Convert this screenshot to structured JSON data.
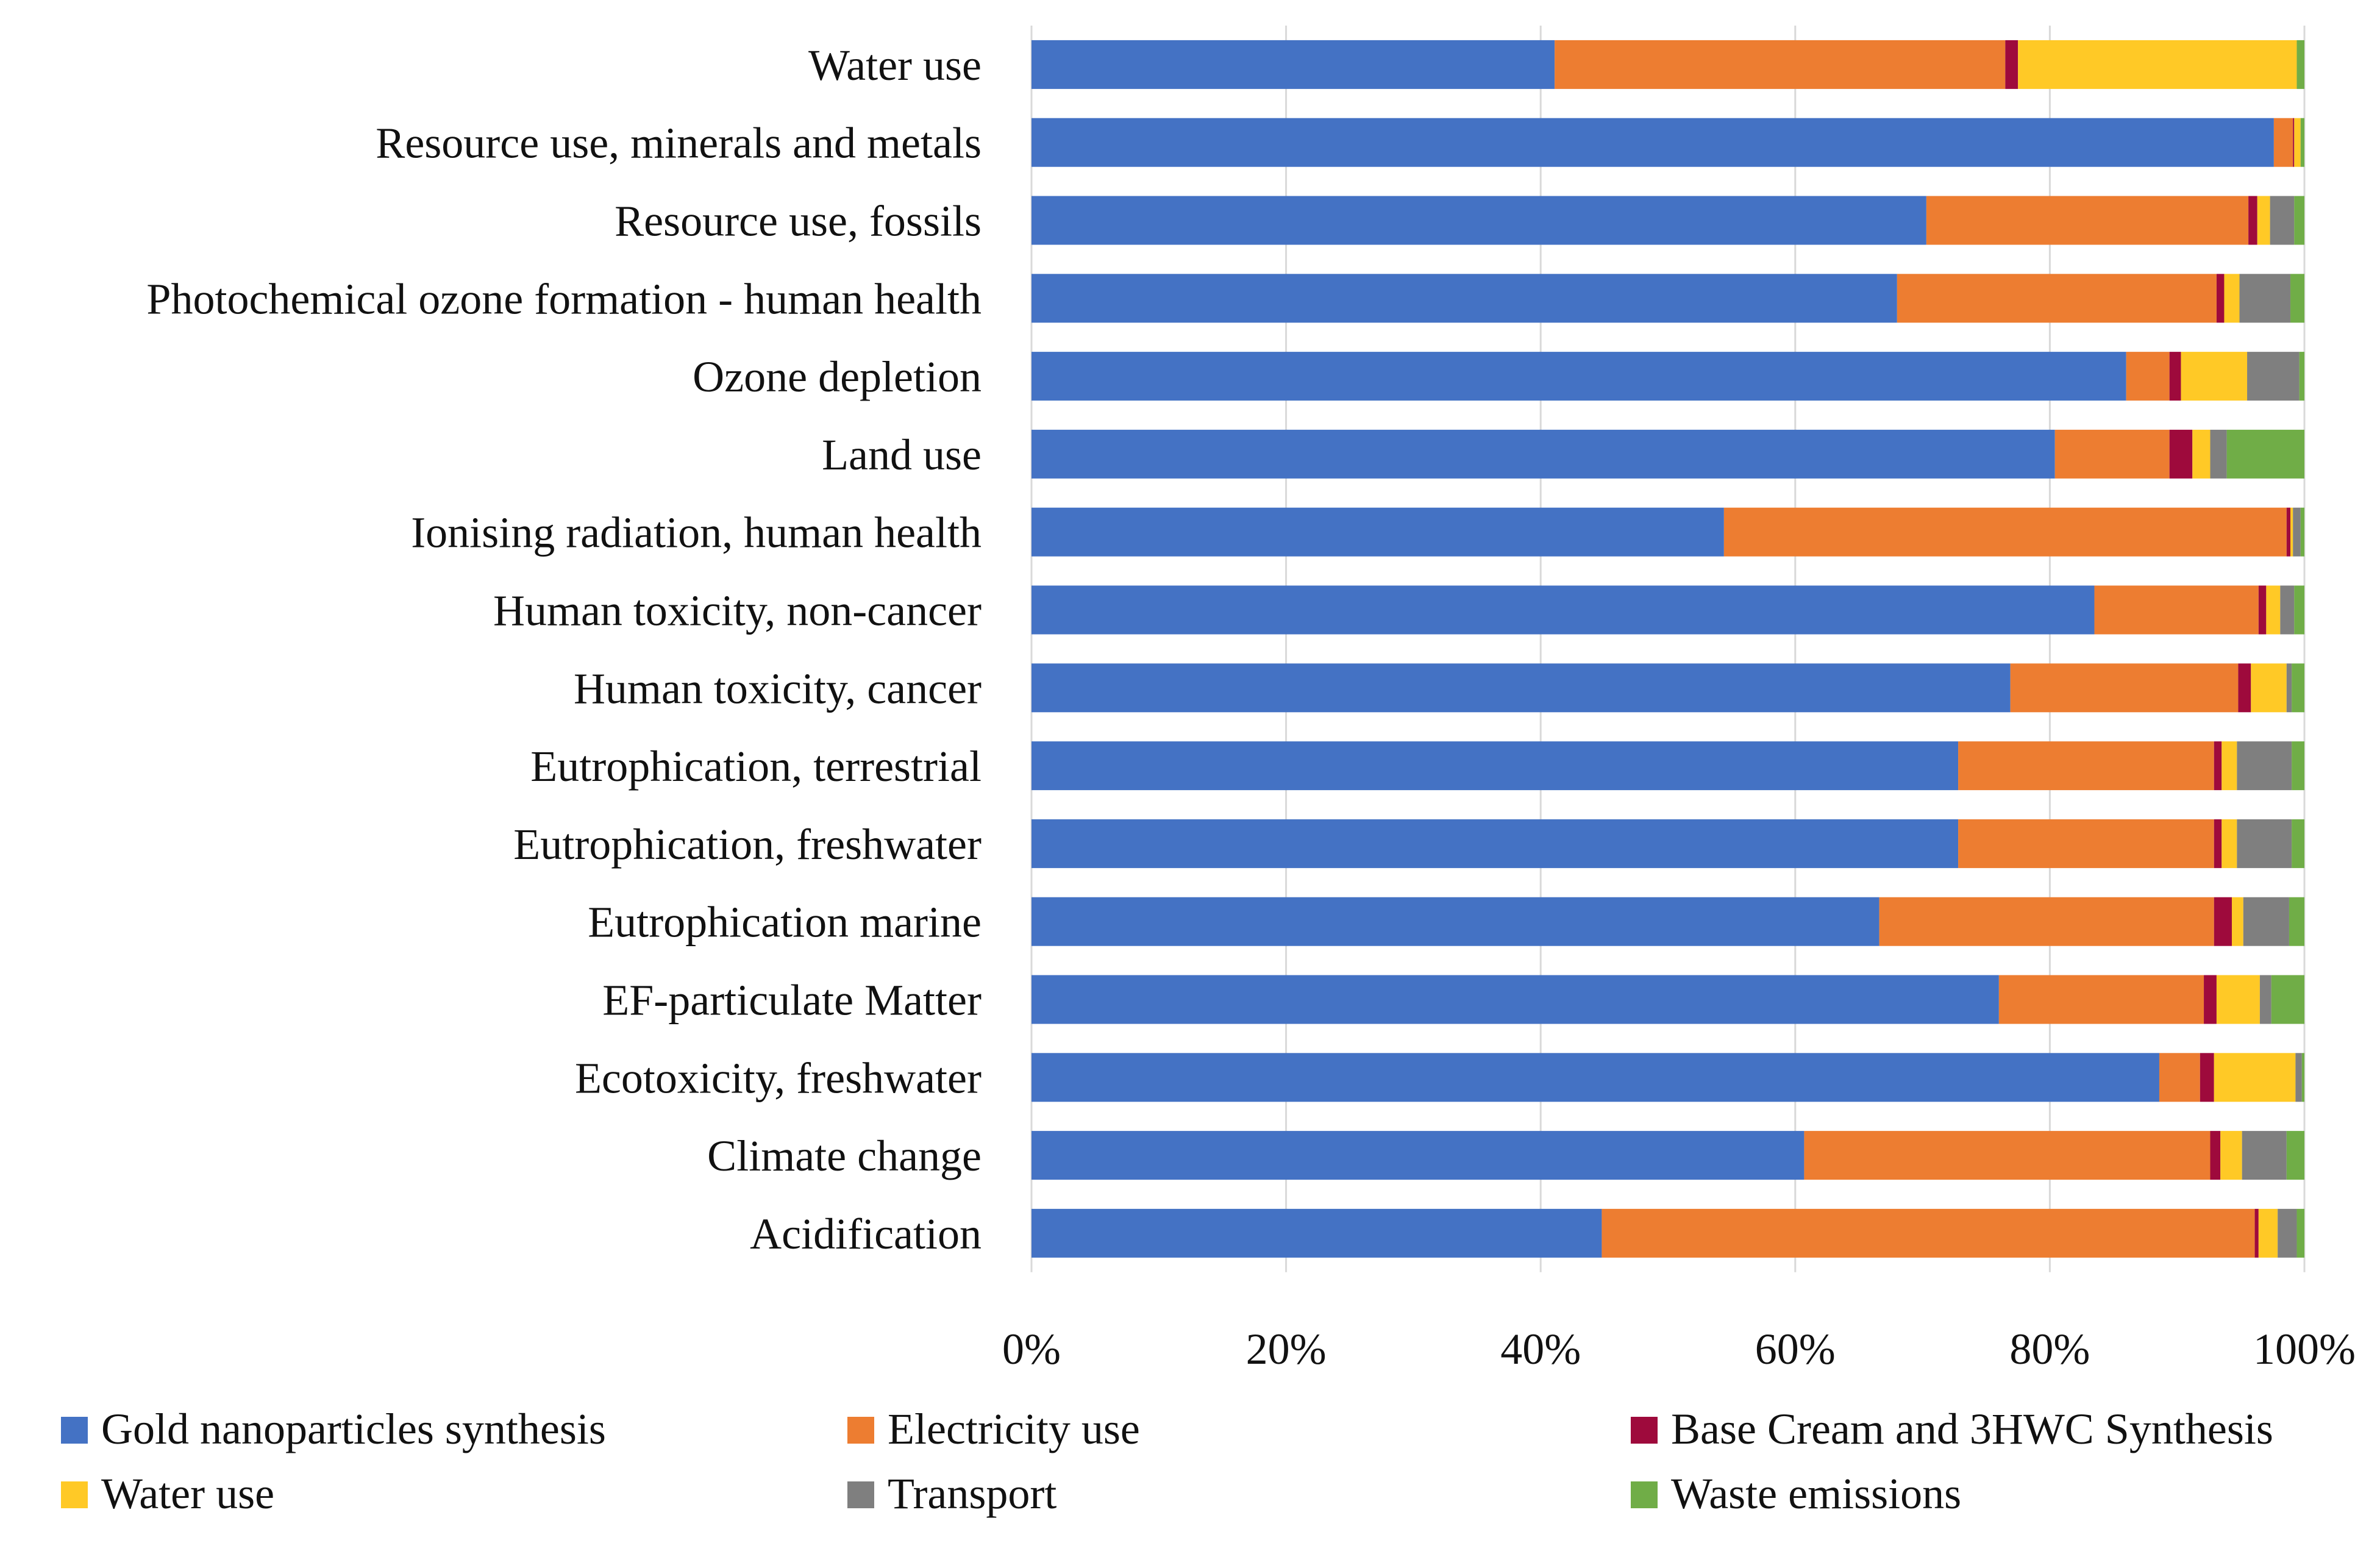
{
  "chart_data": {
    "type": "bar",
    "orientation": "horizontal",
    "stacked": "percent",
    "title": "",
    "xlabel": "",
    "ylabel": "",
    "xlim": [
      0,
      100
    ],
    "grid": true,
    "legend_position": "bottom",
    "x_ticks": [
      "0%",
      "20%",
      "40%",
      "60%",
      "80%",
      "100%"
    ],
    "categories": [
      "Water use",
      "Resource use, minerals and metals",
      "Resource use, fossils",
      "Photochemical ozone formation - human health",
      "Ozone depletion",
      "Land use",
      "Ionising radiation, human health",
      "Human toxicity, non-cancer",
      "Human toxicity, cancer",
      "Eutrophication, terrestrial",
      "Eutrophication, freshwater",
      "Eutrophication marine",
      "EF-particulate Matter",
      "Ecotoxicity, freshwater",
      "Climate change",
      "Acidification"
    ],
    "series": [
      {
        "name": "Gold nanoparticles synthesis",
        "color": "#4472C4",
        "values": [
          41.1,
          97.6,
          70.3,
          68.0,
          86.0,
          80.4,
          54.4,
          83.5,
          76.9,
          72.8,
          72.8,
          66.6,
          76.0,
          88.6,
          60.7,
          44.8
        ]
      },
      {
        "name": "Electricity use",
        "color": "#ED7D31",
        "values": [
          35.4,
          1.5,
          25.3,
          25.1,
          3.4,
          9.0,
          44.2,
          12.9,
          17.9,
          20.1,
          20.1,
          26.3,
          16.1,
          3.2,
          31.9,
          51.3
        ]
      },
      {
        "name": "Base Cream and 3HWC Synthesis",
        "color": "#9E0A3C",
        "values": [
          1.0,
          0.1,
          0.7,
          0.6,
          0.9,
          1.8,
          0.3,
          0.6,
          1.0,
          0.6,
          0.6,
          1.4,
          1.0,
          1.1,
          0.8,
          0.3
        ]
      },
      {
        "name": "Water use",
        "color": "#FFC926",
        "values": [
          21.9,
          0.5,
          1.0,
          1.2,
          5.2,
          1.4,
          0.2,
          1.1,
          2.8,
          1.2,
          1.2,
          0.9,
          3.4,
          6.4,
          1.7,
          1.5
        ]
      },
      {
        "name": "Transport",
        "color": "#7F7F7F",
        "values": [
          0.0,
          0.0,
          1.9,
          4.0,
          4.1,
          1.3,
          0.6,
          1.1,
          0.4,
          4.3,
          4.3,
          3.6,
          0.9,
          0.5,
          3.5,
          1.5
        ]
      },
      {
        "name": "Waste emissions",
        "color": "#70AD47",
        "values": [
          0.6,
          0.3,
          0.8,
          1.1,
          0.4,
          6.1,
          0.3,
          0.8,
          1.0,
          1.0,
          1.0,
          1.2,
          2.6,
          0.2,
          1.4,
          0.6
        ]
      }
    ]
  }
}
